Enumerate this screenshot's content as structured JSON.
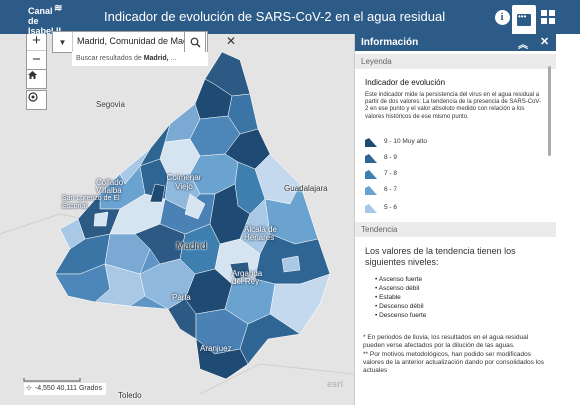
{
  "header": {
    "logo_line1": "Canal",
    "logo_line2": "de Isabel II",
    "title": "Indicador de evolución de SARS-CoV-2 en el agua residual",
    "bg_color": "#2d5b88"
  },
  "map": {
    "search_value": "Madrid, Comunidad de Mac",
    "suggest_prefix": "Buscar resultados de ",
    "suggest_term": "Madrid,",
    "suggest_suffix": " ...",
    "zoom_in": "+",
    "zoom_out": "−",
    "coordinates": "-4,550 40,111 Grados",
    "watermark": "esri",
    "labels": {
      "segovia": "Segovia",
      "collado": "Collado Villalba",
      "colmenar": "Colmenar Viejo",
      "guadalajara": "Guadalajara",
      "sanlorenzo": "San Lorenzo de El Escorial",
      "madrid": "Madrid",
      "alcala": "Alcalá de Henares",
      "arganda": "Arganda del Rey",
      "parla": "Parla",
      "aranjuez": "Aranjuez",
      "toledo": "Toledo"
    }
  },
  "panel": {
    "title": "Información",
    "leyenda_header": "Leyenda",
    "legend_title": "Indicador de evolución",
    "legend_desc": "Este indicador mide la persistencia del virus en el agua residual a partir de dos valores: La tendencia de la presencia de SARS-CoV-2 en ese punto y el valor absoluto medido con relación a los valores históricos de ese mismo punto.",
    "legend_items": [
      {
        "label": "9 - 10 Muy alto",
        "color": "#1f4a73"
      },
      {
        "label": "8 - 9",
        "color": "#2f6592"
      },
      {
        "label": "7 - 8",
        "color": "#3f7fb0"
      },
      {
        "label": "6 - 7",
        "color": "#6aa3cf"
      },
      {
        "label": "5 - 6",
        "color": "#a8c8e6"
      }
    ],
    "tendencia_header": "Tendencia",
    "tendencia_text": "Los valores de la tendencia tienen los siguientes niveles:",
    "tendencia_levels": [
      "Ascenso fuerte",
      "Ascenso débil",
      "Estable",
      "Descenso débil",
      "Descenso fuerte"
    ],
    "note1": "* En periodos de lluvia, los resultados en el agua residual pueden verse afectados por la dilución de las aguas.",
    "note2": "** Por motivos metodológicos, han podido ser modificados valores de la anterior actualización dando por consolidados los actuales"
  }
}
